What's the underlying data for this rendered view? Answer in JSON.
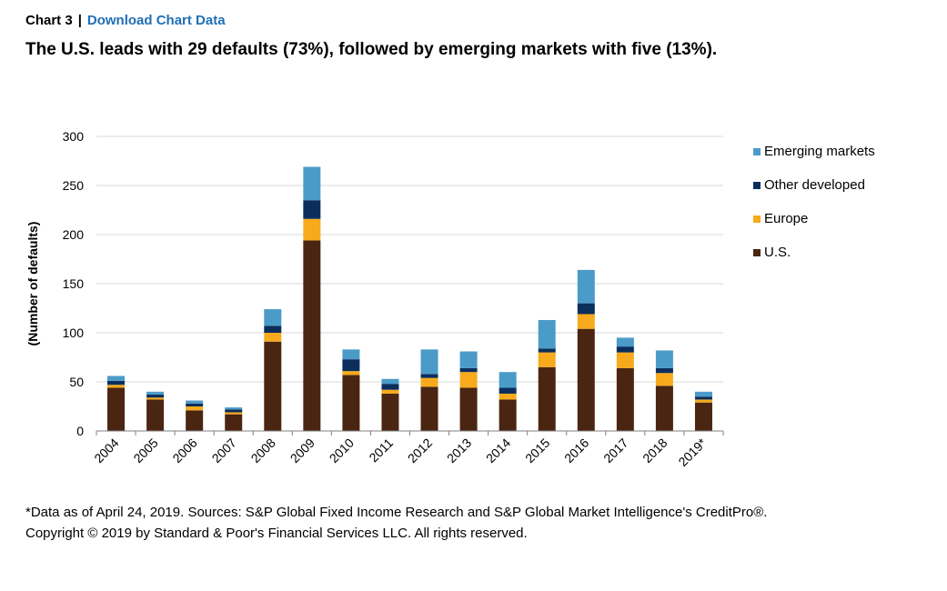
{
  "header": {
    "chart_label": "Chart 3",
    "separator": "|",
    "download_link": "Download Chart Data"
  },
  "title": "The U.S. leads with 29 defaults (73%), followed by emerging markets with five (13%).",
  "footnote": {
    "line1": "*Data as of April 24, 2019. Sources: S&P Global Fixed Income Research and S&P Global Market Intelligence's CreditPro®.",
    "line2": "Copyright © 2019 by Standard & Poor's Financial Services LLC. All rights reserved."
  },
  "chart_data": {
    "type": "bar",
    "stacked": true,
    "categories": [
      "2004",
      "2005",
      "2006",
      "2007",
      "2008",
      "2009",
      "2010",
      "2011",
      "2012",
      "2013",
      "2014",
      "2015",
      "2016",
      "2017",
      "2018",
      "2019*"
    ],
    "series": [
      {
        "name": "U.S.",
        "color": "#4a2512",
        "values": [
          44,
          32,
          21,
          17,
          91,
          194,
          57,
          38,
          45,
          44,
          32,
          65,
          104,
          64,
          46,
          29
        ]
      },
      {
        "name": "Europe",
        "color": "#f7aa1c",
        "values": [
          3,
          2,
          4,
          2,
          9,
          22,
          4,
          4,
          9,
          16,
          6,
          15,
          15,
          16,
          13,
          3
        ]
      },
      {
        "name": "Other developed",
        "color": "#0c2e5c",
        "values": [
          4,
          3,
          3,
          3,
          7,
          19,
          12,
          6,
          4,
          4,
          6,
          4,
          11,
          6,
          5,
          3
        ]
      },
      {
        "name": "Emerging markets",
        "color": "#4b9bc8",
        "values": [
          5,
          3,
          3,
          2,
          17,
          34,
          10,
          5,
          25,
          17,
          16,
          29,
          34,
          9,
          18,
          5
        ]
      }
    ],
    "ylabel": "(Number of defaults)",
    "xlabel": "",
    "ylim": [
      0,
      300
    ],
    "yticks": [
      0,
      50,
      100,
      150,
      200,
      250,
      300
    ],
    "grid": true,
    "legend_position": "right",
    "legend_order": [
      "Emerging markets",
      "Other developed",
      "Europe",
      "U.S."
    ]
  }
}
